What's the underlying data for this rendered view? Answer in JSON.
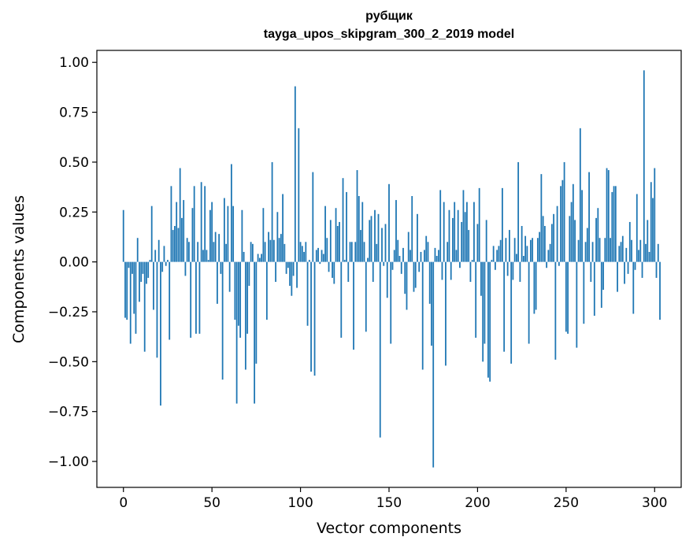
{
  "chart_data": {
    "type": "bar",
    "title_lines": [
      "рубщик",
      "tayga_upos_skipgram_300_2_2019 model"
    ],
    "xlabel": "Vector components",
    "ylabel": "Components values",
    "xlim": [
      -15,
      315
    ],
    "ylim": [
      -1.13,
      1.06
    ],
    "xticks": [
      0,
      50,
      100,
      150,
      200,
      250,
      300
    ],
    "yticks": [
      1.0,
      0.75,
      0.5,
      0.25,
      0.0,
      -0.25,
      -0.5,
      -0.75,
      -1.0
    ],
    "xtick_labels": [
      "0",
      "50",
      "100",
      "150",
      "200",
      "250",
      "300"
    ],
    "ytick_labels": [
      "1.00",
      "0.75",
      "0.50",
      "0.25",
      "0.00",
      "−0.25",
      "−0.50",
      "−0.75",
      "−1.00"
    ],
    "grid": false,
    "bar_color": "#1f77b4",
    "series": [
      {
        "values": [
          0.26,
          -0.28,
          -0.29,
          -0.03,
          -0.41,
          -0.06,
          -0.26,
          -0.36,
          0.12,
          -0.2,
          -0.1,
          -0.06,
          -0.45,
          -0.11,
          -0.08,
          0.01,
          0.28,
          -0.24,
          0.06,
          -0.48,
          0.11,
          -0.72,
          -0.05,
          0.08,
          -0.02,
          0.01,
          -0.39,
          0.38,
          0.16,
          0.18,
          0.3,
          0.17,
          0.47,
          0.22,
          0.31,
          -0.07,
          0.12,
          0.1,
          -0.38,
          0.27,
          0.38,
          -0.36,
          0.1,
          -0.36,
          0.4,
          0.06,
          0.38,
          0.06,
          0.01,
          0.26,
          0.3,
          0.1,
          0.15,
          -0.21,
          0.14,
          -0.06,
          -0.59,
          0.32,
          0.09,
          0.28,
          -0.15,
          0.49,
          0.28,
          -0.29,
          -0.71,
          -0.32,
          -0.38,
          0.26,
          0.05,
          -0.54,
          -0.36,
          -0.12,
          0.1,
          0.09,
          -0.71,
          -0.51,
          0.04,
          0.02,
          0.04,
          0.27,
          0.1,
          -0.29,
          0.15,
          0.11,
          0.5,
          0.11,
          -0.1,
          0.25,
          0.12,
          0.14,
          0.34,
          0.09,
          -0.06,
          -0.03,
          -0.12,
          -0.17,
          -0.07,
          0.88,
          -0.13,
          0.67,
          0.1,
          0.08,
          0.05,
          0.1,
          -0.32,
          0.01,
          -0.55,
          0.45,
          -0.57,
          0.06,
          0.07,
          -0.01,
          0.06,
          0.04,
          0.28,
          0.12,
          -0.05,
          0.21,
          -0.08,
          -0.11,
          0.27,
          0.18,
          0.2,
          -0.38,
          0.42,
          0.01,
          0.35,
          -0.1,
          0.1,
          0.1,
          -0.44,
          0.1,
          0.46,
          0.33,
          0.16,
          0.3,
          0.1,
          -0.35,
          0.02,
          0.21,
          0.23,
          -0.1,
          0.26,
          0.09,
          0.24,
          -0.88,
          0.17,
          -0.02,
          0.19,
          -0.18,
          0.39,
          -0.41,
          -0.04,
          0.06,
          0.31,
          0.11,
          0.03,
          -0.06,
          0.07,
          -0.16,
          -0.24,
          0.15,
          0.06,
          0.33,
          -0.15,
          -0.13,
          0.24,
          -0.05,
          0.05,
          -0.54,
          0.06,
          0.13,
          0.1,
          -0.21,
          -0.42,
          -1.03,
          0.07,
          0.03,
          0.06,
          0.36,
          -0.09,
          0.3,
          -0.52,
          0.1,
          0.26,
          -0.09,
          0.22,
          0.3,
          0.06,
          0.26,
          -0.03,
          0.2,
          0.36,
          0.25,
          0.3,
          0.16,
          -0.1,
          0.01,
          0.3,
          -0.38,
          0.19,
          0.37,
          -0.17,
          -0.5,
          -0.41,
          0.21,
          -0.58,
          -0.6,
          0.01,
          0.08,
          -0.04,
          0.06,
          0.08,
          0.11,
          0.37,
          -0.45,
          0.12,
          -0.07,
          0.16,
          -0.51,
          -0.09,
          0.12,
          0.04,
          0.5,
          -0.1,
          0.18,
          0.03,
          0.13,
          0.08,
          -0.41,
          0.11,
          0.12,
          -0.26,
          -0.24,
          0.12,
          0.15,
          0.44,
          0.23,
          0.18,
          -0.03,
          0.06,
          0.09,
          0.19,
          0.24,
          -0.49,
          0.28,
          -0.02,
          0.38,
          0.41,
          0.5,
          -0.35,
          -0.36,
          0.23,
          0.3,
          0.39,
          0.21,
          -0.43,
          0.11,
          0.67,
          0.36,
          -0.31,
          0.1,
          0.17,
          0.45,
          -0.1,
          0.1,
          -0.27,
          0.22,
          0.27,
          0.12,
          -0.23,
          -0.14,
          0.12,
          0.47,
          0.46,
          0.12,
          0.35,
          0.38,
          0.38,
          -0.15,
          0.08,
          0.1,
          0.13,
          -0.11,
          0.07,
          -0.06,
          0.2,
          0.11,
          -0.26,
          -0.04,
          0.34,
          0.06,
          0.11,
          -0.08,
          0.96,
          0.09,
          0.21,
          0.05,
          0.4,
          0.32,
          0.47,
          -0.08,
          0.09,
          -0.29
        ]
      }
    ]
  }
}
